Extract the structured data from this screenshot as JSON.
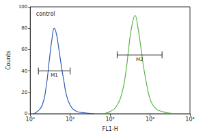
{
  "chart_data": {
    "type": "line",
    "x_label": "FL1-H",
    "y_label": "Counts",
    "log": "x",
    "grid": false,
    "xlim": [
      1,
      10000
    ],
    "xticks": [
      {
        "value": 1,
        "label": "10⁰"
      },
      {
        "value": 10,
        "label": "10¹"
      },
      {
        "value": 100,
        "label": "10²"
      },
      {
        "value": 1000,
        "label": "10³"
      },
      {
        "value": 10000,
        "label": "10⁴"
      }
    ],
    "ylim": [
      0,
      100
    ],
    "yticks": [
      0,
      20,
      40,
      60,
      80,
      100
    ],
    "series": [
      {
        "color": "#2f5db3",
        "x": [
          1.2,
          1.5,
          2,
          2.5,
          3,
          3.5,
          4,
          4.5,
          5,
          6,
          7,
          8,
          10,
          13,
          20,
          40
        ],
        "values": [
          0,
          2,
          8,
          25,
          50,
          70,
          80,
          75,
          65,
          45,
          30,
          18,
          8,
          3,
          1,
          0
        ]
      },
      {
        "color": "#5bb34a",
        "x": [
          60,
          100,
          150,
          200,
          250,
          300,
          350,
          420,
          500,
          600,
          700,
          850,
          1000,
          1300,
          2000,
          4000
        ],
        "values": [
          0,
          2,
          8,
          20,
          40,
          65,
          82,
          92,
          80,
          60,
          42,
          25,
          14,
          6,
          2,
          0
        ]
      }
    ],
    "markers": [
      {
        "label": "M1",
        "x": [
          1.6,
          10
        ],
        "y": 40
      },
      {
        "label": "M2",
        "x": [
          150,
          2000
        ],
        "y": 55
      }
    ],
    "annotations": [
      {
        "text": "control",
        "x": 1.4,
        "y": 93
      }
    ]
  }
}
